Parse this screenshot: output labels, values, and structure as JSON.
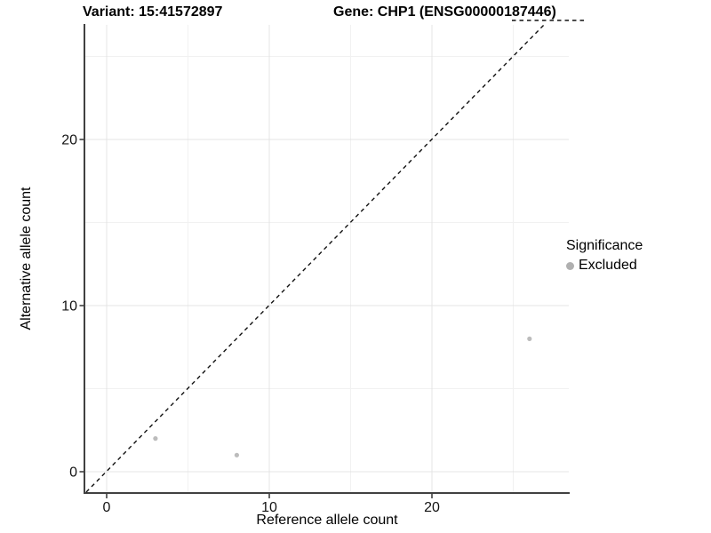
{
  "header": {
    "variant_title": "Variant: 15:41572897",
    "gene_title": "Gene: CHP1 (ENSG00000187446)"
  },
  "chart_data": {
    "type": "scatter",
    "title": "",
    "xlabel": "Reference allele count",
    "ylabel": "Alternative allele count",
    "x_ticks": [
      0,
      10,
      20
    ],
    "y_ticks": [
      0,
      10,
      20
    ],
    "x_minor_ticks": [
      5,
      15,
      25
    ],
    "y_minor_ticks": [
      5,
      15,
      25
    ],
    "xlim": [
      -1.3,
      28.4
    ],
    "ylim": [
      -1.2,
      26.9
    ],
    "grid": true,
    "points": [
      {
        "x": 3,
        "y": 2,
        "significance": "Excluded"
      },
      {
        "x": 8,
        "y": 1,
        "significance": "Excluded"
      },
      {
        "x": 26,
        "y": 8,
        "significance": "Excluded"
      }
    ],
    "point_color": "#bcbcbc",
    "reference_line": {
      "type": "identity y = x",
      "style": "dashed",
      "color": "#111111",
      "top_clipped_dash_segment_visible": true
    },
    "legend_position": "right"
  },
  "legend": {
    "title": "Significance",
    "items": [
      {
        "label": "Excluded",
        "color": "#b0b0b0",
        "marker": "circle"
      }
    ]
  }
}
